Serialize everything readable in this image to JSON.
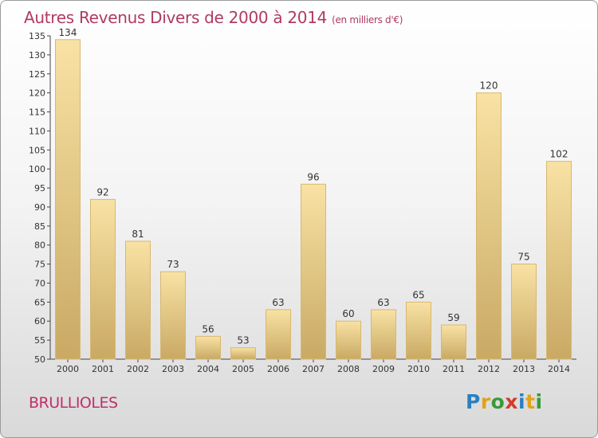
{
  "title": "Autres Revenus Divers de 2000 à 2014",
  "subtitle": "(en milliers d'€)",
  "commune": "BRULLIOLES",
  "logo": {
    "text": "Proxiti",
    "letters": [
      "P",
      "r",
      "o",
      "x",
      "i",
      "t",
      "i"
    ]
  },
  "colors": {
    "title": "#b03a63",
    "bar_top": "#f8e2a4",
    "bar_bottom": "#c9a964",
    "bar_border": "#d8b870"
  },
  "chart_data": {
    "type": "bar",
    "categories": [
      "2000",
      "2001",
      "2002",
      "2003",
      "2004",
      "2005",
      "2006",
      "2007",
      "2008",
      "2009",
      "2010",
      "2011",
      "2012",
      "2013",
      "2014"
    ],
    "values": [
      134,
      92,
      81,
      73,
      56,
      53,
      63,
      96,
      60,
      63,
      65,
      59,
      120,
      75,
      102
    ],
    "ylim": [
      50,
      135
    ],
    "yticks": [
      50,
      55,
      60,
      65,
      70,
      75,
      80,
      85,
      90,
      95,
      100,
      105,
      110,
      115,
      120,
      125,
      130,
      135
    ],
    "grid": false,
    "xlabel": "",
    "ylabel": ""
  }
}
